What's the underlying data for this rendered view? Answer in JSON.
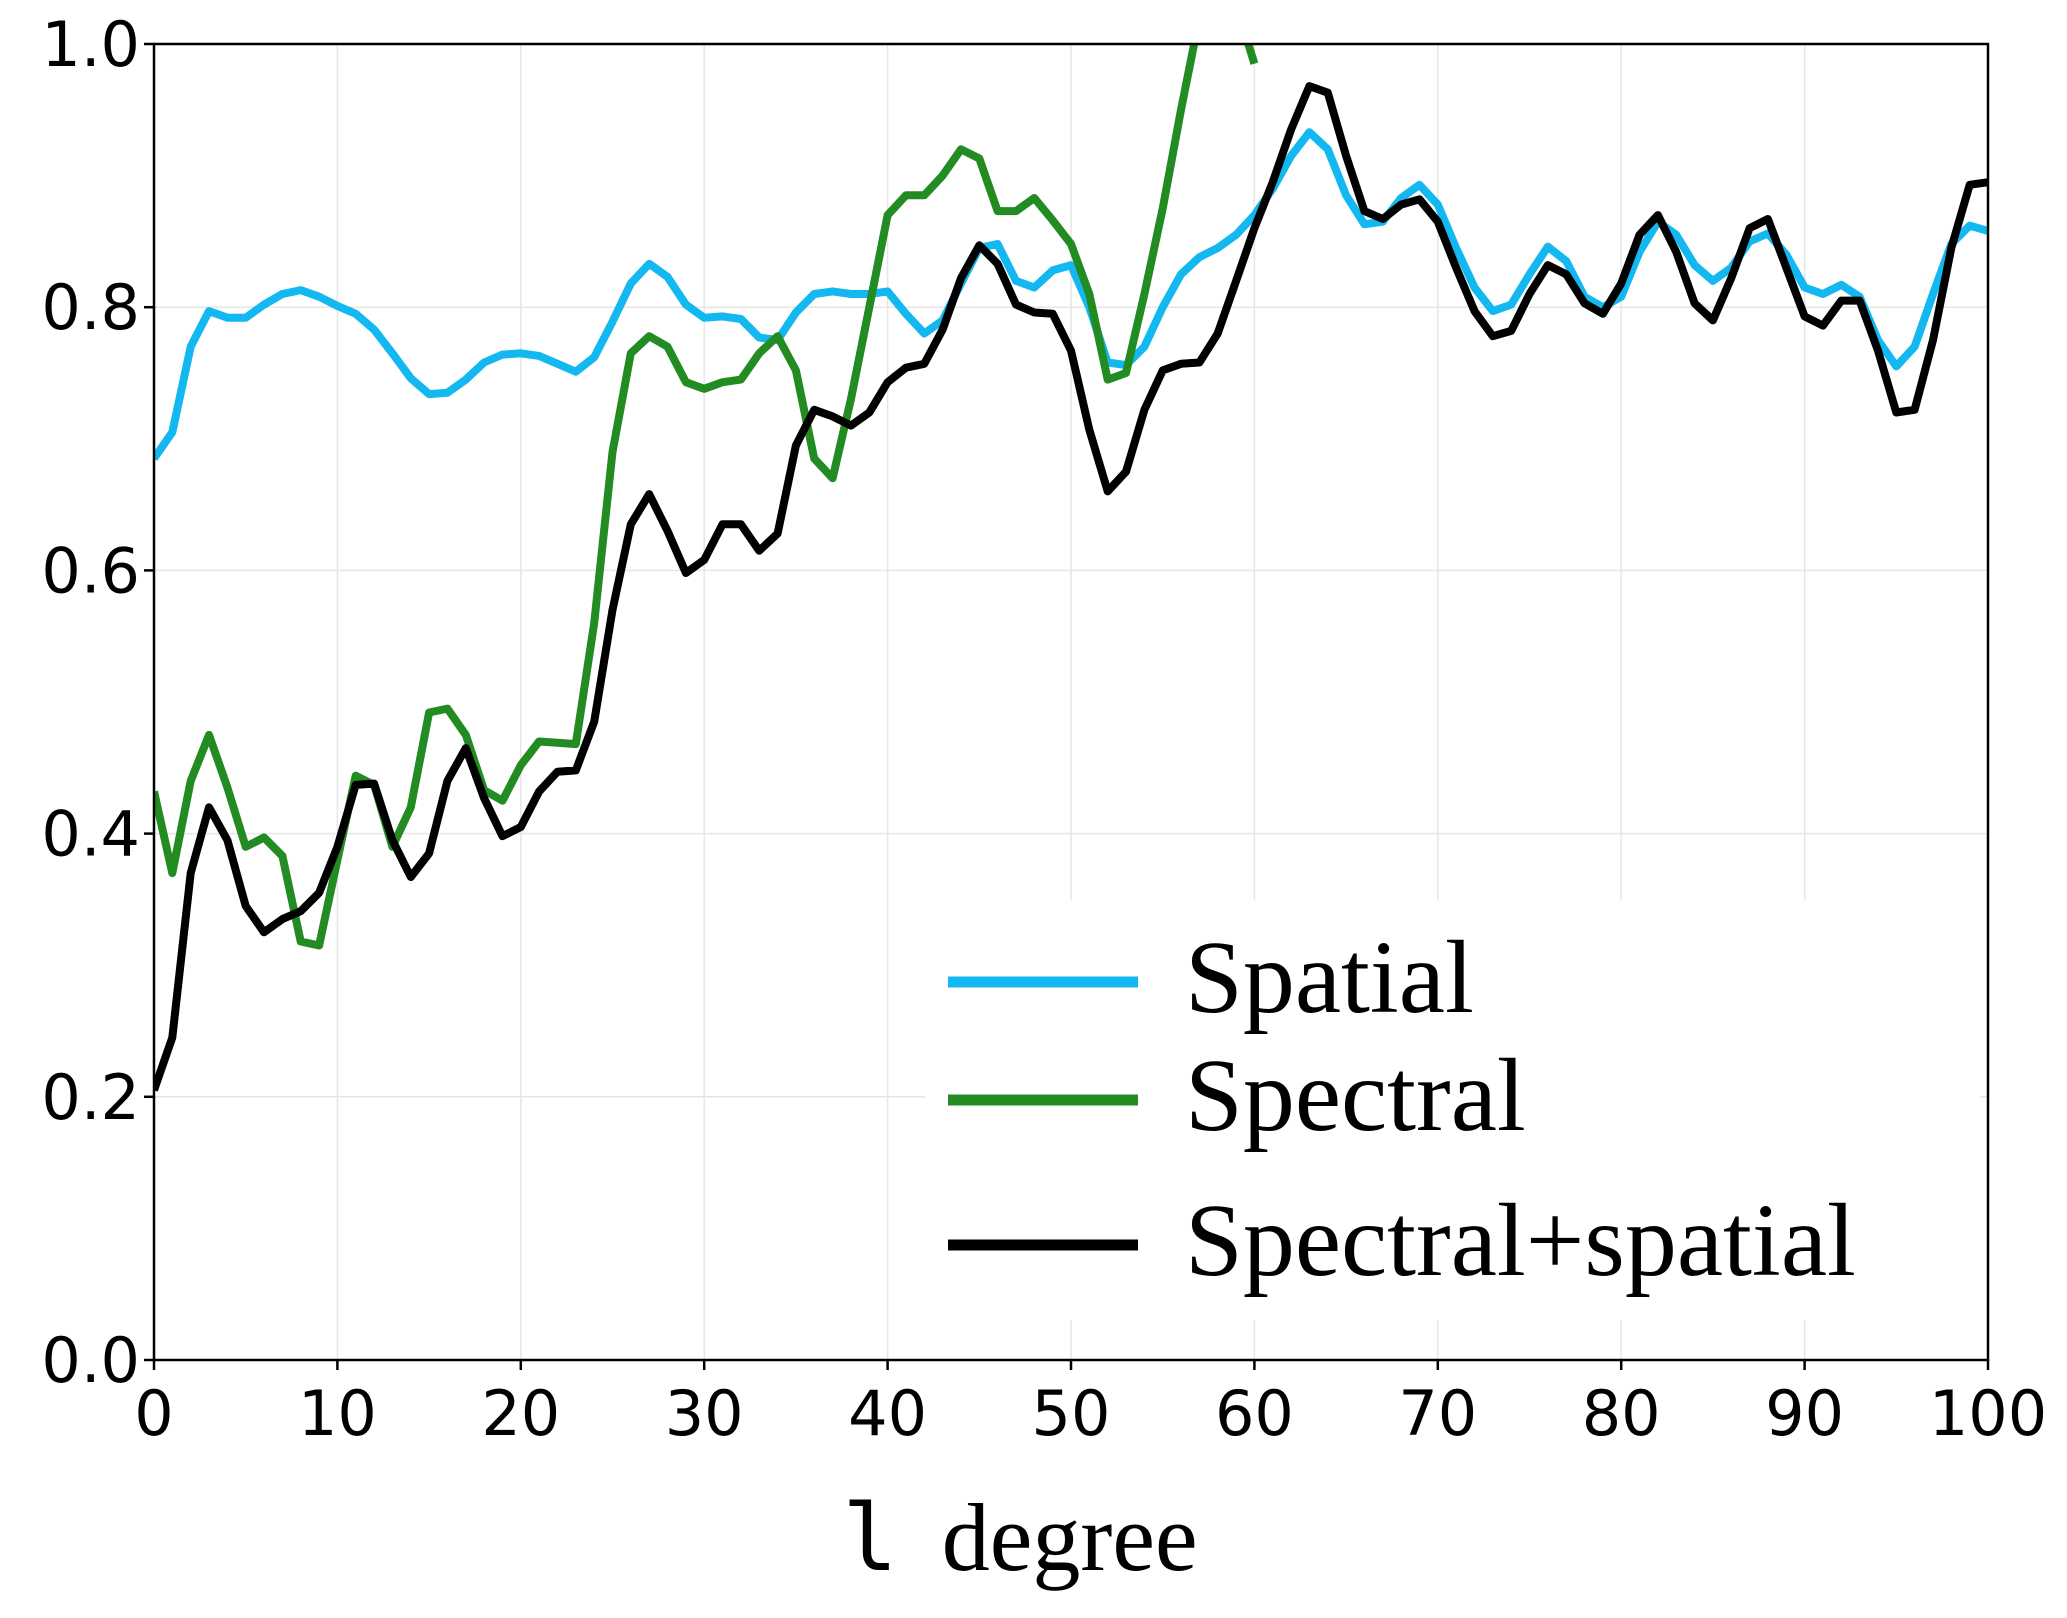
{
  "chart_data": {
    "type": "line",
    "title": "",
    "xlabel_symbol": "l",
    "xlabel_word": "degree",
    "ylabel": "",
    "xlim": [
      0,
      100
    ],
    "ylim": [
      0.0,
      1.0
    ],
    "xticks": [
      0,
      10,
      20,
      30,
      40,
      50,
      60,
      70,
      80,
      90,
      100
    ],
    "xtick_labels": [
      "0",
      "10",
      "20",
      "30",
      "40",
      "50",
      "60",
      "70",
      "80",
      "90",
      "100"
    ],
    "yticks": [
      0.0,
      0.2,
      0.4,
      0.6,
      0.8,
      1.0
    ],
    "ytick_labels": [
      "0.0",
      "0.2",
      "0.4",
      "0.6",
      "0.8",
      "1.0"
    ],
    "grid": true,
    "legend_position": "lower-right",
    "series": [
      {
        "name": "Spatial",
        "color": "#12b8ef",
        "x": [
          0,
          1,
          2,
          3,
          4,
          5,
          6,
          7,
          8,
          9,
          10,
          11,
          12,
          13,
          14,
          15,
          16,
          17,
          18,
          19,
          20,
          21,
          22,
          23,
          24,
          25,
          26,
          27,
          28,
          29,
          30,
          31,
          32,
          33,
          34,
          35,
          36,
          37,
          38,
          39,
          40,
          41,
          42,
          43,
          44,
          45,
          46,
          47,
          48,
          49,
          50,
          51,
          52,
          53,
          54,
          55,
          56,
          57,
          58,
          59,
          60,
          61,
          62,
          63,
          64,
          65,
          66,
          67,
          68,
          69,
          70,
          71,
          72,
          73,
          74,
          75,
          76,
          77,
          78,
          79,
          80,
          81,
          82,
          83,
          84,
          85,
          86,
          87,
          88,
          89,
          90,
          91,
          92,
          93,
          94,
          95,
          96,
          97,
          98,
          99,
          100
        ],
        "y": [
          0.685,
          0.705,
          0.77,
          0.797,
          0.792,
          0.792,
          0.802,
          0.81,
          0.813,
          0.808,
          0.801,
          0.795,
          0.783,
          0.765,
          0.746,
          0.734,
          0.735,
          0.745,
          0.758,
          0.764,
          0.765,
          0.763,
          0.757,
          0.751,
          0.762,
          0.789,
          0.818,
          0.833,
          0.823,
          0.802,
          0.792,
          0.793,
          0.791,
          0.777,
          0.775,
          0.796,
          0.81,
          0.812,
          0.81,
          0.81,
          0.812,
          0.795,
          0.78,
          0.79,
          0.818,
          0.845,
          0.848,
          0.82,
          0.815,
          0.828,
          0.832,
          0.8,
          0.758,
          0.756,
          0.77,
          0.8,
          0.825,
          0.838,
          0.845,
          0.855,
          0.87,
          0.89,
          0.915,
          0.933,
          0.92,
          0.885,
          0.863,
          0.865,
          0.883,
          0.893,
          0.878,
          0.845,
          0.815,
          0.797,
          0.802,
          0.825,
          0.846,
          0.835,
          0.808,
          0.8,
          0.808,
          0.842,
          0.865,
          0.855,
          0.832,
          0.82,
          0.83,
          0.85,
          0.856,
          0.84,
          0.815,
          0.81,
          0.817,
          0.808,
          0.775,
          0.755,
          0.77,
          0.81,
          0.848,
          0.862,
          0.858
        ]
      },
      {
        "name": "Spectral",
        "color": "#228b22",
        "x": [
          0,
          1,
          2,
          3,
          4,
          5,
          6,
          7,
          8,
          9,
          10,
          11,
          12,
          13,
          14,
          15,
          16,
          17,
          18,
          19,
          20,
          21,
          22,
          23,
          24,
          25,
          26,
          27,
          28,
          29,
          30,
          31,
          32,
          33,
          34,
          35,
          36,
          37,
          38,
          39,
          40,
          41,
          42,
          43,
          44,
          45,
          46,
          47,
          48,
          49,
          50,
          51,
          52,
          53,
          54,
          55,
          56,
          57,
          58,
          59,
          60
        ],
        "y": [
          0.432,
          0.37,
          0.44,
          0.475,
          0.435,
          0.39,
          0.397,
          0.383,
          0.318,
          0.315,
          0.38,
          0.444,
          0.437,
          0.39,
          0.42,
          0.492,
          0.495,
          0.475,
          0.433,
          0.425,
          0.452,
          0.47,
          0.469,
          0.468,
          0.56,
          0.69,
          0.765,
          0.778,
          0.77,
          0.743,
          0.738,
          0.743,
          0.745,
          0.765,
          0.778,
          0.752,
          0.685,
          0.67,
          0.73,
          0.8,
          0.87,
          0.885,
          0.885,
          0.9,
          0.92,
          0.913,
          0.873,
          0.873,
          0.883,
          0.866,
          0.848,
          0.81,
          0.745,
          0.75,
          0.81,
          0.875,
          0.95,
          1.02,
          1.07,
          1.03,
          0.985
        ]
      },
      {
        "name": "Spectral+spatial",
        "color": "#000000",
        "x": [
          0,
          1,
          2,
          3,
          4,
          5,
          6,
          7,
          8,
          9,
          10,
          11,
          12,
          13,
          14,
          15,
          16,
          17,
          18,
          19,
          20,
          21,
          22,
          23,
          24,
          25,
          26,
          27,
          28,
          29,
          30,
          31,
          32,
          33,
          34,
          35,
          36,
          37,
          38,
          39,
          40,
          41,
          42,
          43,
          44,
          45,
          46,
          47,
          48,
          49,
          50,
          51,
          52,
          53,
          54,
          55,
          56,
          57,
          58,
          59,
          60,
          61,
          62,
          63,
          64,
          65,
          66,
          67,
          68,
          69,
          70,
          71,
          72,
          73,
          74,
          75,
          76,
          77,
          78,
          79,
          80,
          81,
          82,
          83,
          84,
          85,
          86,
          87,
          88,
          89,
          90,
          91,
          92,
          93,
          94,
          95,
          96,
          97,
          98,
          99,
          100
        ],
        "y": [
          0.205,
          0.245,
          0.37,
          0.42,
          0.395,
          0.345,
          0.325,
          0.335,
          0.341,
          0.355,
          0.39,
          0.437,
          0.438,
          0.395,
          0.367,
          0.385,
          0.44,
          0.465,
          0.427,
          0.398,
          0.405,
          0.432,
          0.447,
          0.448,
          0.485,
          0.57,
          0.635,
          0.658,
          0.63,
          0.598,
          0.608,
          0.635,
          0.635,
          0.615,
          0.628,
          0.695,
          0.722,
          0.717,
          0.71,
          0.72,
          0.743,
          0.754,
          0.757,
          0.783,
          0.822,
          0.847,
          0.833,
          0.802,
          0.796,
          0.795,
          0.767,
          0.707,
          0.66,
          0.675,
          0.722,
          0.752,
          0.757,
          0.758,
          0.78,
          0.82,
          0.86,
          0.895,
          0.935,
          0.968,
          0.963,
          0.915,
          0.873,
          0.867,
          0.878,
          0.882,
          0.865,
          0.83,
          0.797,
          0.778,
          0.782,
          0.81,
          0.832,
          0.825,
          0.803,
          0.795,
          0.818,
          0.855,
          0.87,
          0.842,
          0.803,
          0.79,
          0.822,
          0.86,
          0.867,
          0.83,
          0.793,
          0.786,
          0.805,
          0.805,
          0.767,
          0.72,
          0.722,
          0.775,
          0.845,
          0.893,
          0.895
        ]
      }
    ]
  }
}
